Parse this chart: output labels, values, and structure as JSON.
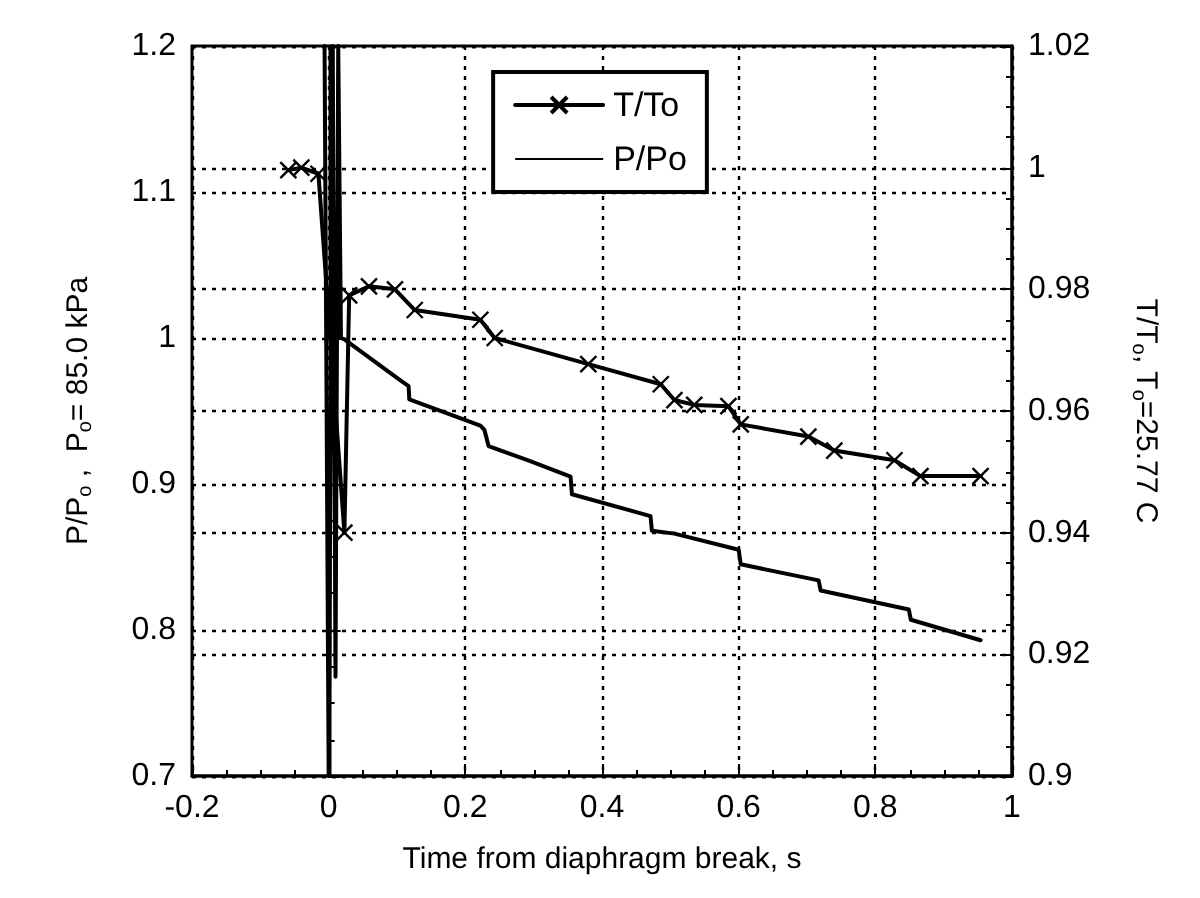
{
  "chart_data": {
    "type": "line",
    "xlabel": "Time from diaphragm break, s",
    "ylabel": "P/P$_{o}$ ,  P$_{o}$= 85.0 kPa",
    "y2label": "T/T$_{o}$, T$_{o}$=25.77 C",
    "xlim": [
      -0.2,
      1
    ],
    "xticks": [
      -0.2,
      0,
      0.2,
      0.4,
      0.6,
      0.8,
      1
    ],
    "ylim": [
      0.7,
      1.2
    ],
    "yticks": [
      0.7,
      0.8,
      0.9,
      1,
      1.1,
      1.2
    ],
    "y2lim": [
      0.9,
      1.02
    ],
    "y2ticks": [
      0.9,
      0.92,
      0.94,
      0.96,
      0.98,
      1,
      1.02
    ],
    "grid": true,
    "legend": "top",
    "line_style": "solid",
    "series": [
      {
        "name": "T/To",
        "color": "#000000",
        "axis": "y2",
        "marker": "cross",
        "x": [
          -0.059,
          -0.04,
          -0.015,
          0.023,
          0.03,
          0.059,
          0.097,
          0.126,
          0.222,
          0.243,
          0.38,
          0.486,
          0.506,
          0.535,
          0.585,
          0.603,
          0.702,
          0.74,
          0.828,
          0.866,
          0.954
        ],
        "values": [
          0.9996,
          1.0,
          0.999,
          0.94,
          0.979,
          0.9805,
          0.98,
          0.9766,
          0.975,
          0.972,
          0.9677,
          0.9644,
          0.9618,
          0.961,
          0.9608,
          0.9578,
          0.9558,
          0.9535,
          0.9519,
          0.9493,
          0.9493
        ]
      },
      {
        "name": "P/Po",
        "color": "#000000",
        "axis": "y",
        "marker": "none",
        "x": [
          -0.006,
          0.0,
          0.006,
          0.01,
          0.014,
          0.018,
          0.023,
          0.105,
          0.117,
          0.118,
          0.222,
          0.228,
          0.234,
          0.293,
          0.354,
          0.356,
          0.471,
          0.473,
          0.506,
          0.6,
          0.603,
          0.717,
          0.72,
          0.849,
          0.852,
          0.954
        ],
        "values": [
          1.2,
          0.7,
          1.2,
          0.768,
          1.2,
          1.0,
          0.999,
          0.971,
          0.967,
          0.958,
          0.94,
          0.937,
          0.926,
          0.916,
          0.905,
          0.893,
          0.878,
          0.868,
          0.866,
          0.855,
          0.845,
          0.834,
          0.827,
          0.814,
          0.807,
          0.793
        ]
      }
    ]
  }
}
